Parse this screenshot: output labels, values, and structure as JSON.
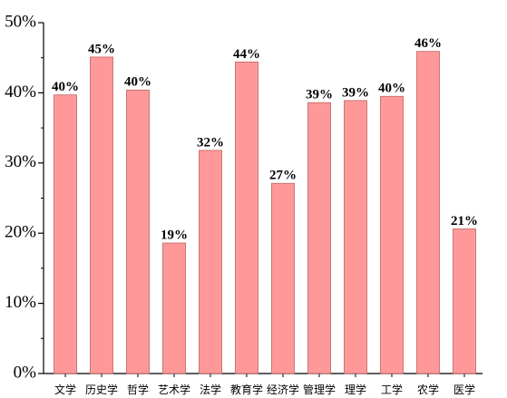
{
  "chart_data": {
    "type": "bar",
    "categories": [
      "文学",
      "历史学",
      "哲学",
      "艺术学",
      "法学",
      "教育学",
      "经济学",
      "管理学",
      "理学",
      "工学",
      "农学",
      "医学"
    ],
    "values": [
      39.7,
      45.1,
      40.4,
      18.6,
      31.8,
      44.4,
      27.1,
      38.6,
      38.9,
      39.5,
      45.9,
      20.6
    ],
    "value_labels": [
      "40%",
      "45%",
      "40%",
      "19%",
      "32%",
      "44%",
      "27%",
      "39%",
      "39%",
      "40%",
      "46%",
      "21%"
    ],
    "color": "#ff9999",
    "ylim": [
      0,
      50
    ],
    "yticks": [
      {
        "value": 0,
        "label": "0%"
      },
      {
        "value": 10,
        "label": "10%"
      },
      {
        "value": 20,
        "label": "20%"
      },
      {
        "value": 30,
        "label": "30%"
      },
      {
        "value": 40,
        "label": "40%"
      },
      {
        "value": 50,
        "label": "50%"
      }
    ]
  }
}
